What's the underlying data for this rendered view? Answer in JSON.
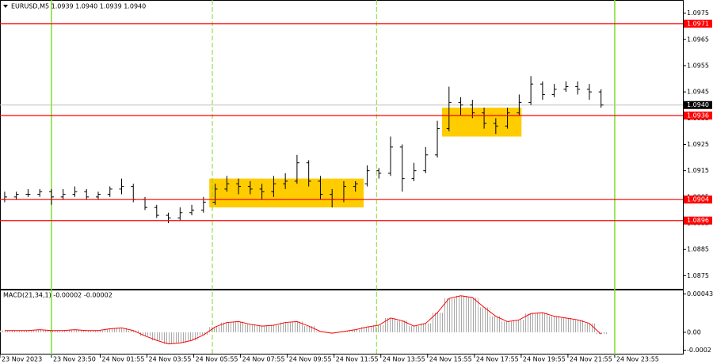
{
  "chart_data": [
    {
      "type": "ohlc",
      "title": "EURUSD,M5  1.0939 1.0940 1.0939 1.0940",
      "color": "#000000",
      "xlim": [
        -0.4,
        58.0
      ],
      "ylim": [
        1.087,
        1.098
      ],
      "yticks": [
        1.0975,
        1.0965,
        1.0955,
        1.0945,
        1.0935,
        1.0925,
        1.0915,
        1.0905,
        1.0895,
        1.0885,
        1.0875
      ],
      "open": [
        1.0904,
        1.0905,
        1.0906,
        1.0906,
        1.0907,
        1.0905,
        1.0906,
        1.0907,
        1.0905,
        1.0906,
        1.0908,
        1.0909,
        1.0904,
        1.0901,
        1.0898,
        1.0897,
        1.0899,
        1.09,
        1.0903,
        1.0908,
        1.091,
        1.0909,
        1.0908,
        1.0907,
        1.091,
        1.0911,
        1.0918,
        1.0911,
        1.0906,
        1.0904,
        1.0909,
        1.091,
        1.0915,
        1.0914,
        1.0924,
        1.0912,
        1.0915,
        1.0921,
        1.0931,
        1.0941,
        1.094,
        1.0937,
        1.0933,
        1.0932,
        1.0937,
        1.0941,
        1.0948,
        1.0944,
        1.0946,
        1.0947,
        1.0946,
        1.0945
      ],
      "high": [
        1.0907,
        1.0907,
        1.0908,
        1.0908,
        1.0908,
        1.0908,
        1.0909,
        1.0908,
        1.0907,
        1.0909,
        1.0912,
        1.091,
        1.0905,
        1.0902,
        1.0899,
        1.0901,
        1.0902,
        1.0905,
        1.091,
        1.0913,
        1.0912,
        1.0911,
        1.091,
        1.0913,
        1.0914,
        1.0921,
        1.0919,
        1.0913,
        1.0908,
        1.0911,
        1.0911,
        1.0917,
        1.0916,
        1.0928,
        1.0925,
        1.0918,
        1.0924,
        1.0934,
        1.0947,
        1.0943,
        1.0942,
        1.0939,
        1.0935,
        1.0939,
        1.0944,
        1.0951,
        1.0949,
        1.0948,
        1.0949,
        1.0949,
        1.0948,
        1.0946
      ],
      "low": [
        1.0903,
        1.0904,
        1.0905,
        1.0905,
        1.0902,
        1.0904,
        1.0905,
        1.0904,
        1.0904,
        1.0905,
        1.0906,
        1.0903,
        1.09,
        1.0897,
        1.0895,
        1.0896,
        1.0898,
        1.0899,
        1.0902,
        1.0907,
        1.0906,
        1.0906,
        1.0904,
        1.0905,
        1.0908,
        1.091,
        1.0909,
        1.0904,
        1.0901,
        1.0903,
        1.0907,
        1.0909,
        1.0912,
        1.0913,
        1.0907,
        1.0911,
        1.0914,
        1.092,
        1.093,
        1.0936,
        1.0935,
        1.0931,
        1.0929,
        1.0931,
        1.0936,
        1.094,
        1.0942,
        1.0943,
        1.0945,
        1.0944,
        1.0942,
        1.0939
      ],
      "close": [
        1.0905,
        1.0906,
        1.0906,
        1.0907,
        1.0905,
        1.0906,
        1.0907,
        1.0905,
        1.0906,
        1.0908,
        1.0909,
        1.0904,
        1.0901,
        1.0898,
        1.0897,
        1.0899,
        1.09,
        1.0903,
        1.0908,
        1.091,
        1.0909,
        1.0908,
        1.0907,
        1.091,
        1.0911,
        1.0918,
        1.0911,
        1.0906,
        1.0904,
        1.0909,
        1.091,
        1.0915,
        1.0914,
        1.0924,
        1.0912,
        1.0915,
        1.0921,
        1.0931,
        1.0941,
        1.094,
        1.0937,
        1.0933,
        1.0932,
        1.0937,
        1.0941,
        1.0948,
        1.0944,
        1.0946,
        1.0947,
        1.0946,
        1.0945,
        1.094
      ],
      "levels": [
        1.0971,
        1.0936,
        1.0904,
        1.0896
      ],
      "level_color": "#ff0000",
      "current": {
        "value": 1.094,
        "label": "1.0940"
      },
      "current_color": "#c0c0c0",
      "boxes": [
        {
          "x": [
            17.5,
            30.7
          ],
          "y": [
            1.0901,
            1.0912
          ]
        },
        {
          "x": [
            37.4,
            44.2
          ],
          "y": [
            1.0928,
            1.0939
          ]
        }
      ],
      "box_color": "#ffcc00",
      "vlines_solid": [
        4,
        52.17
      ],
      "vlines_dashed": [
        17.76,
        31.8
      ],
      "vline_color": "#7fdd2a"
    },
    {
      "type": "bar",
      "title": "MACD(21,34,1) -0.00002 -0.00002",
      "color": "#a8a8a8",
      "signal_color": "#ff0000",
      "xlim": [
        -0.4,
        58.0
      ],
      "ylim": [
        -0.00024,
        0.00047
      ],
      "yticks": [
        0.00043,
        {
          "value": 0,
          "label": "0.00"
        },
        -0.0002
      ],
      "values": [
        2e-05,
        2e-05,
        2e-05,
        3e-05,
        2e-05,
        2e-05,
        3e-05,
        2e-05,
        2e-05,
        4e-05,
        5e-05,
        2e-05,
        -4e-05,
        -9e-05,
        -0.00013,
        -0.00012,
        -9e-05,
        -3e-05,
        6e-05,
        0.00011,
        0.00012,
        9e-05,
        7e-05,
        8e-05,
        0.00011,
        0.00012,
        7e-05,
        1e-05,
        -1e-05,
        1e-05,
        3e-05,
        6e-05,
        8e-05,
        0.00016,
        0.00013,
        7e-05,
        0.0001,
        0.00022,
        0.00038,
        0.00041,
        0.00039,
        0.00028,
        0.00018,
        0.00012,
        0.00014,
        0.00021,
        0.00022,
        0.00018,
        0.00016,
        0.00014,
        0.0001,
        -2e-05
      ],
      "xticks": [
        {
          "value": -0.4,
          "label": "23 Nov 2023"
        },
        {
          "value": 4,
          "label": "23 Nov 23:50"
        },
        {
          "value": 8.17,
          "label": "24 Nov 01:55"
        },
        {
          "value": 12.17,
          "label": "24 Nov 03:55"
        },
        {
          "value": 16.17,
          "label": "24 Nov 05:55"
        },
        {
          "value": 20.17,
          "label": "24 Nov 07:55"
        },
        {
          "value": 24.17,
          "label": "24 Nov 09:55"
        },
        {
          "value": 28.17,
          "label": "24 Nov 11:55"
        },
        {
          "value": 32.17,
          "label": "24 Nov 13:55"
        },
        {
          "value": 36.17,
          "label": "24 Nov 15:55"
        },
        {
          "value": 40.17,
          "label": "24 Nov 17:55"
        },
        {
          "value": 44.17,
          "label": "24 Nov 19:55"
        },
        {
          "value": 48.17,
          "label": "24 Nov 21:55"
        },
        {
          "value": 52.17,
          "label": "24 Nov 23:55"
        }
      ]
    }
  ]
}
